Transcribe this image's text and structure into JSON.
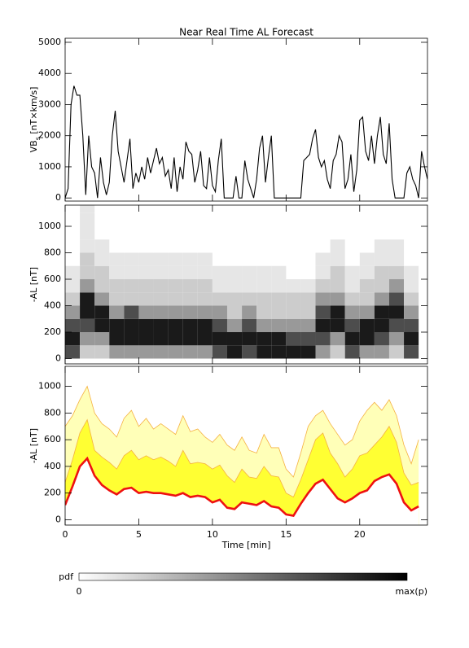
{
  "chart_data": [
    {
      "type": "line",
      "title": "Near Real Time AL Forecast",
      "ylabel_parts": [
        "VB",
        "s",
        " [nT×km/s]"
      ],
      "xlim": [
        0,
        24.6
      ],
      "xticks": [
        0,
        5,
        10,
        15,
        20
      ],
      "ylim": [
        -100,
        5130
      ],
      "yticks": [
        0,
        1000,
        2000,
        3000,
        4000,
        5000
      ],
      "x": [
        0,
        0.2,
        0.4,
        0.6,
        0.8,
        1,
        1.2,
        1.4,
        1.6,
        1.8,
        2,
        2.2,
        2.4,
        2.6,
        2.8,
        3,
        3.2,
        3.4,
        3.6,
        3.8,
        4,
        4.2,
        4.4,
        4.6,
        4.8,
        5,
        5.2,
        5.4,
        5.6,
        5.8,
        6,
        6.2,
        6.4,
        6.6,
        6.8,
        7,
        7.2,
        7.4,
        7.6,
        7.8,
        8,
        8.2,
        8.4,
        8.6,
        8.8,
        9,
        9.2,
        9.4,
        9.6,
        9.8,
        10,
        10.2,
        10.4,
        10.6,
        10.8,
        11,
        11.2,
        11.4,
        11.6,
        11.8,
        12,
        12.2,
        12.4,
        12.6,
        12.8,
        13,
        13.2,
        13.4,
        13.6,
        13.8,
        14,
        14.2,
        14.4,
        14.6,
        14.8,
        15,
        15.2,
        15.4,
        15.6,
        15.8,
        16,
        16.2,
        16.4,
        16.6,
        16.8,
        17,
        17.2,
        17.4,
        17.6,
        17.8,
        18,
        18.2,
        18.4,
        18.6,
        18.8,
        19,
        19.2,
        19.4,
        19.6,
        19.8,
        20,
        20.2,
        20.4,
        20.6,
        20.8,
        21,
        21.2,
        21.4,
        21.6,
        21.8,
        22,
        22.2,
        22.4,
        22.6,
        22.8,
        23,
        23.2,
        23.4,
        23.6,
        23.8,
        24,
        24.2,
        24.4,
        24.6
      ],
      "series": [
        {
          "color": "#000000",
          "values": [
            0,
            300,
            3000,
            3600,
            3300,
            3300,
            2000,
            100,
            2000,
            1000,
            800,
            0,
            1300,
            500,
            100,
            500,
            2000,
            2800,
            1500,
            1000,
            500,
            1200,
            1900,
            300,
            800,
            500,
            1000,
            600,
            1300,
            800,
            1200,
            1600,
            1100,
            1300,
            700,
            900,
            300,
            1300,
            200,
            1000,
            600,
            1800,
            1500,
            1400,
            500,
            900,
            1500,
            400,
            300,
            1300,
            400,
            200,
            1200,
            1900,
            0,
            0,
            0,
            0,
            700,
            0,
            0,
            1200,
            600,
            300,
            0,
            600,
            1600,
            2000,
            500,
            1300,
            2000,
            0,
            0,
            0,
            0,
            0,
            0,
            0,
            0,
            0,
            0,
            1200,
            1300,
            1400,
            1900,
            2200,
            1300,
            1000,
            1200,
            600,
            300,
            1200,
            1400,
            2000,
            1800,
            300,
            600,
            1400,
            200,
            900,
            2500,
            2600,
            1500,
            1200,
            2000,
            1100,
            2000,
            2600,
            1400,
            1100,
            2400,
            600,
            0,
            0,
            0,
            0,
            800,
            1000,
            600,
            400,
            0,
            1500,
            1000,
            600
          ]
        }
      ]
    },
    {
      "type": "heatmap",
      "ylabel": "-AL [nT]",
      "xlim": [
        0,
        24.6
      ],
      "xticks": [
        0,
        5,
        10,
        15,
        20
      ],
      "ylim": [
        -40,
        1160
      ],
      "yticks": [
        0,
        200,
        400,
        600,
        800,
        1000
      ],
      "colormap": [
        "#ffffff",
        "#000000"
      ],
      "x_edges": [
        0,
        1,
        2,
        3,
        4,
        5,
        6,
        7,
        8,
        9,
        10,
        11,
        12,
        13,
        14,
        15,
        16,
        17,
        18,
        19,
        20,
        21,
        22,
        23,
        24
      ],
      "y_edges": [
        0,
        100,
        200,
        300,
        400,
        500,
        600,
        700,
        800,
        900,
        1000,
        1100,
        1200
      ],
      "z": [
        [
          0.7,
          0.9,
          0.7,
          0.4,
          0.2,
          0.1,
          0.1,
          0,
          0,
          0,
          0,
          0
        ],
        [
          0.2,
          0.4,
          0.7,
          0.9,
          0.9,
          0.4,
          0.2,
          0.2,
          0.1,
          0.1,
          0.1,
          0.1
        ],
        [
          0.2,
          0.4,
          0.9,
          0.9,
          0.4,
          0.2,
          0.2,
          0.1,
          0.1,
          0,
          0,
          0
        ],
        [
          0.4,
          0.9,
          0.9,
          0.4,
          0.2,
          0.2,
          0.1,
          0.1,
          0,
          0,
          0,
          0
        ],
        [
          0.4,
          0.9,
          0.9,
          0.7,
          0.2,
          0.2,
          0.1,
          0.1,
          0,
          0,
          0,
          0
        ],
        [
          0.4,
          0.9,
          0.9,
          0.4,
          0.2,
          0.2,
          0.1,
          0.1,
          0,
          0,
          0,
          0
        ],
        [
          0.4,
          0.9,
          0.9,
          0.4,
          0.2,
          0.2,
          0.1,
          0.1,
          0,
          0,
          0,
          0
        ],
        [
          0.4,
          0.9,
          0.9,
          0.4,
          0.2,
          0.2,
          0.1,
          0.1,
          0,
          0,
          0,
          0
        ],
        [
          0.4,
          0.9,
          0.9,
          0.4,
          0.2,
          0.2,
          0.1,
          0.1,
          0,
          0,
          0,
          0
        ],
        [
          0.4,
          0.9,
          0.9,
          0.4,
          0.2,
          0.2,
          0.1,
          0.1,
          0,
          0,
          0,
          0
        ],
        [
          0.7,
          0.9,
          0.7,
          0.4,
          0.2,
          0.1,
          0.1,
          0,
          0,
          0,
          0,
          0
        ],
        [
          0.9,
          0.9,
          0.4,
          0.2,
          0.2,
          0.1,
          0.1,
          0,
          0,
          0,
          0,
          0
        ],
        [
          0.7,
          0.9,
          0.7,
          0.4,
          0.2,
          0.1,
          0.1,
          0,
          0,
          0,
          0,
          0
        ],
        [
          0.9,
          0.9,
          0.4,
          0.2,
          0.2,
          0.1,
          0.1,
          0,
          0,
          0,
          0,
          0
        ],
        [
          0.9,
          0.9,
          0.4,
          0.2,
          0.2,
          0.1,
          0.1,
          0,
          0,
          0,
          0,
          0
        ],
        [
          0.9,
          0.7,
          0.4,
          0.2,
          0.2,
          0.1,
          0,
          0,
          0,
          0,
          0,
          0
        ],
        [
          0.9,
          0.7,
          0.4,
          0.2,
          0.2,
          0.1,
          0,
          0,
          0,
          0,
          0,
          0
        ],
        [
          0.4,
          0.7,
          0.9,
          0.7,
          0.4,
          0.2,
          0.1,
          0.1,
          0,
          0,
          0,
          0
        ],
        [
          0.2,
          0.4,
          0.9,
          0.9,
          0.4,
          0.2,
          0.2,
          0.1,
          0.1,
          0,
          0,
          0
        ],
        [
          0.7,
          0.9,
          0.7,
          0.4,
          0.2,
          0.1,
          0.1,
          0,
          0,
          0,
          0,
          0
        ],
        [
          0.4,
          0.9,
          0.9,
          0.4,
          0.2,
          0.2,
          0.1,
          0.1,
          0,
          0,
          0,
          0
        ],
        [
          0.4,
          0.7,
          0.9,
          0.9,
          0.4,
          0.2,
          0.2,
          0.1,
          0.1,
          0,
          0,
          0
        ],
        [
          0.2,
          0.4,
          0.7,
          0.9,
          0.7,
          0.4,
          0.2,
          0.1,
          0.1,
          0,
          0,
          0
        ],
        [
          0.7,
          0.9,
          0.7,
          0.4,
          0.2,
          0.1,
          0.1,
          0,
          0,
          0,
          0,
          0
        ]
      ],
      "colorbar": {
        "label": "pdf",
        "min_label": "0",
        "max_label": "max(p)"
      }
    },
    {
      "type": "area",
      "ylabel": "-AL [nT]",
      "xlabel": "Time [min]",
      "xlim": [
        0,
        24.6
      ],
      "xticks": [
        0,
        5,
        10,
        15,
        20
      ],
      "ylim": [
        -40,
        1150
      ],
      "yticks": [
        0,
        200,
        400,
        600,
        800,
        1000
      ],
      "x": [
        0,
        0.5,
        1,
        1.5,
        2,
        2.5,
        3,
        3.5,
        4,
        4.5,
        5,
        5.5,
        6,
        6.5,
        7,
        7.5,
        8,
        8.5,
        9,
        9.5,
        10,
        10.5,
        11,
        11.5,
        12,
        12.5,
        13,
        13.5,
        14,
        14.5,
        15,
        15.5,
        16,
        16.5,
        17,
        17.5,
        18,
        18.5,
        19,
        19.5,
        20,
        20.5,
        21,
        21.5,
        22,
        22.5,
        23,
        23.5,
        24
      ],
      "series": [
        {
          "color": "#f5b041",
          "fill": "#ffffb8",
          "values": [
            700,
            780,
            900,
            1000,
            800,
            720,
            680,
            620,
            760,
            820,
            700,
            760,
            680,
            720,
            680,
            640,
            780,
            660,
            680,
            620,
            580,
            640,
            560,
            520,
            620,
            520,
            500,
            640,
            540,
            540,
            380,
            320,
            500,
            700,
            780,
            820,
            720,
            640,
            560,
            600,
            740,
            820,
            880,
            820,
            900,
            780,
            560,
            420,
            600
          ]
        },
        {
          "color": "#f5b041",
          "fill": "#ffff33",
          "values": [
            280,
            450,
            650,
            750,
            520,
            470,
            430,
            380,
            480,
            520,
            450,
            480,
            450,
            470,
            440,
            400,
            520,
            420,
            430,
            420,
            380,
            410,
            330,
            280,
            380,
            320,
            310,
            400,
            330,
            320,
            200,
            170,
            300,
            450,
            600,
            650,
            500,
            420,
            320,
            380,
            480,
            500,
            560,
            620,
            700,
            580,
            350,
            260,
            280
          ]
        },
        {
          "color": "#ee1111",
          "fill": "#ffffff",
          "values": [
            110,
            250,
            400,
            460,
            330,
            260,
            220,
            190,
            230,
            240,
            200,
            210,
            200,
            200,
            190,
            180,
            200,
            170,
            180,
            170,
            130,
            150,
            90,
            80,
            130,
            120,
            110,
            140,
            100,
            90,
            40,
            30,
            120,
            200,
            270,
            300,
            230,
            160,
            130,
            160,
            200,
            220,
            290,
            320,
            340,
            270,
            130,
            70,
            100
          ]
        }
      ]
    }
  ]
}
